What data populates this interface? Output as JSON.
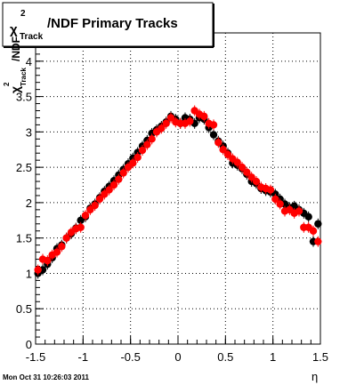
{
  "title_box": {
    "chi": "χ",
    "sup": "2",
    "sub": "Track",
    "rest": "/NDF  Primary Tracks"
  },
  "ylabel": {
    "chi": "χ",
    "sup": "2",
    "sub": "Track",
    "rest": "/NDF"
  },
  "xlabel": "η",
  "timestamp": "Mon Oct 31 10:26:03 2011",
  "colors": {
    "series1": "#000000",
    "series2": "#ff0000",
    "grid": "#000000"
  },
  "chart_data": {
    "type": "scatter",
    "title": "χ2 Track /NDF  Primary Tracks",
    "xlabel": "η",
    "ylabel": "χ2 Track /NDF",
    "xlim": [
      -1.5,
      1.5
    ],
    "ylim": [
      0,
      4.4
    ],
    "xticks": [
      -1.5,
      -1,
      -0.5,
      0,
      0.5,
      1,
      1.5
    ],
    "xtick_labels": [
      "-1.5",
      "-1",
      "-0.5",
      "0",
      "0.5",
      "1",
      "1.5"
    ],
    "yticks": [
      0,
      0.5,
      1,
      1.5,
      2,
      2.5,
      3,
      3.5,
      4
    ],
    "ytick_labels": [
      "0",
      "0.5",
      "1",
      "1.5",
      "2",
      "2.5",
      "3",
      "3.5",
      "4"
    ],
    "grid": true,
    "series": [
      {
        "x": [
          -1.475,
          -1.425,
          -1.375,
          -1.325,
          -1.275,
          -1.225,
          -1.175,
          -1.125,
          -1.075,
          -1.025,
          -0.975,
          -0.925,
          -0.875,
          -0.825,
          -0.775,
          -0.725,
          -0.675,
          -0.625,
          -0.575,
          -0.525,
          -0.475,
          -0.425,
          -0.375,
          -0.325,
          -0.275,
          -0.225,
          -0.175,
          -0.125,
          -0.075,
          -0.025,
          0.025,
          0.075,
          0.125,
          0.175,
          0.225,
          0.275,
          0.325,
          0.375,
          0.425,
          0.475,
          0.525,
          0.575,
          0.625,
          0.675,
          0.725,
          0.775,
          0.825,
          0.875,
          0.925,
          0.975,
          1.025,
          1.075,
          1.125,
          1.175,
          1.225,
          1.275,
          1.325,
          1.375,
          1.425,
          1.475
        ],
        "y": [
          1.0,
          1.05,
          1.13,
          1.22,
          1.35,
          1.4,
          1.5,
          1.56,
          1.64,
          1.75,
          1.8,
          1.92,
          1.98,
          2.07,
          2.16,
          2.23,
          2.31,
          2.39,
          2.47,
          2.55,
          2.63,
          2.71,
          2.8,
          2.88,
          2.98,
          3.03,
          3.08,
          3.14,
          3.22,
          3.18,
          3.12,
          3.2,
          3.18,
          3.12,
          3.2,
          3.18,
          3.06,
          2.96,
          2.87,
          2.8,
          2.7,
          2.56,
          2.53,
          2.48,
          2.4,
          2.3,
          2.27,
          2.2,
          2.17,
          2.15,
          2.12,
          2.05,
          1.98,
          1.93,
          1.95,
          1.9,
          1.85,
          1.8,
          1.45,
          1.7
        ]
      },
      {
        "x": [
          -1.475,
          -1.425,
          -1.375,
          -1.325,
          -1.275,
          -1.225,
          -1.175,
          -1.125,
          -1.075,
          -1.025,
          -0.975,
          -0.925,
          -0.875,
          -0.825,
          -0.775,
          -0.725,
          -0.675,
          -0.625,
          -0.575,
          -0.525,
          -0.475,
          -0.425,
          -0.375,
          -0.325,
          -0.275,
          -0.225,
          -0.175,
          -0.125,
          -0.075,
          -0.025,
          0.025,
          0.075,
          0.125,
          0.175,
          0.225,
          0.275,
          0.325,
          0.375,
          0.425,
          0.475,
          0.525,
          0.575,
          0.625,
          0.675,
          0.725,
          0.775,
          0.825,
          0.875,
          0.925,
          0.975,
          1.025,
          1.075,
          1.125,
          1.175,
          1.225,
          1.275,
          1.325,
          1.375,
          1.425,
          1.475
        ],
        "y": [
          1.05,
          1.2,
          1.18,
          1.26,
          1.3,
          1.38,
          1.5,
          1.58,
          1.63,
          1.65,
          1.82,
          1.9,
          1.96,
          2.05,
          2.12,
          2.18,
          2.25,
          2.33,
          2.42,
          2.5,
          2.56,
          2.64,
          2.74,
          2.82,
          2.9,
          3.0,
          3.05,
          3.12,
          3.2,
          3.14,
          3.12,
          3.12,
          3.15,
          3.3,
          3.25,
          3.22,
          3.12,
          3.1,
          2.85,
          2.75,
          2.68,
          2.62,
          2.57,
          2.5,
          2.43,
          2.36,
          2.3,
          2.22,
          2.2,
          2.18,
          2.05,
          1.98,
          1.88,
          1.9,
          1.85,
          1.88,
          1.65,
          1.65,
          1.6,
          1.45
        ]
      }
    ]
  }
}
